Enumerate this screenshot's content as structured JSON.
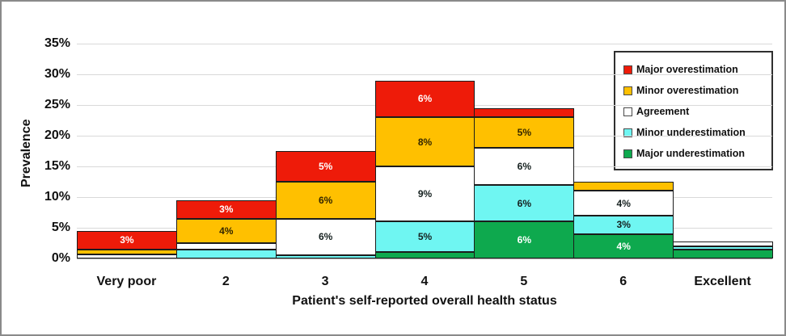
{
  "chart_data": {
    "type": "bar",
    "stacked": true,
    "title": "",
    "xlabel": "Patient's self-reported overall health status",
    "ylabel": "Prevalence",
    "ylim": [
      0,
      35
    ],
    "ytick_step": 5,
    "ytick_suffix": "%",
    "grid": true,
    "categories": [
      "Very poor",
      "2",
      "3",
      "4",
      "5",
      "6",
      "Excellent"
    ],
    "series": [
      {
        "name": "Major underestimation",
        "color": "#0ea94e",
        "label_color": "#ffffff",
        "values": [
          0,
          0,
          0,
          1.0,
          6,
          4,
          1.4
        ],
        "labels": [
          "",
          "",
          "",
          "",
          "6%",
          "4%",
          ""
        ]
      },
      {
        "name": "Minor underestimation",
        "color": "#6ff6f2",
        "label_color": "#15201f",
        "values": [
          0,
          1.5,
          0.5,
          5,
          6,
          3,
          0.6
        ],
        "labels": [
          "",
          "",
          "",
          "5%",
          "6%",
          "3%",
          ""
        ]
      },
      {
        "name": "Agreement",
        "color": "#ffffff",
        "label_color": "#15201f",
        "values": [
          0.6,
          1.0,
          6,
          9,
          6,
          4,
          0.8
        ],
        "labels": [
          "",
          "",
          "6%",
          "9%",
          "6%",
          "4%",
          ""
        ]
      },
      {
        "name": "Minor overestimation",
        "color": "#ffc000",
        "label_color": "#332600",
        "values": [
          0.9,
          4,
          6,
          8,
          5,
          1.5,
          0
        ],
        "labels": [
          "",
          "4%",
          "6%",
          "8%",
          "5%",
          "",
          ""
        ]
      },
      {
        "name": "Major overestimation",
        "color": "#ee1b09",
        "label_color": "#ffffff",
        "values": [
          3,
          3,
          5,
          6,
          1.5,
          0,
          0
        ],
        "labels": [
          "3%",
          "3%",
          "5%",
          "6%",
          "",
          "",
          ""
        ]
      }
    ],
    "legend": {
      "position": "top-right",
      "order": [
        "Major overestimation",
        "Minor overestimation",
        "Agreement",
        "Minor underestimation",
        "Major underestimation"
      ]
    }
  }
}
